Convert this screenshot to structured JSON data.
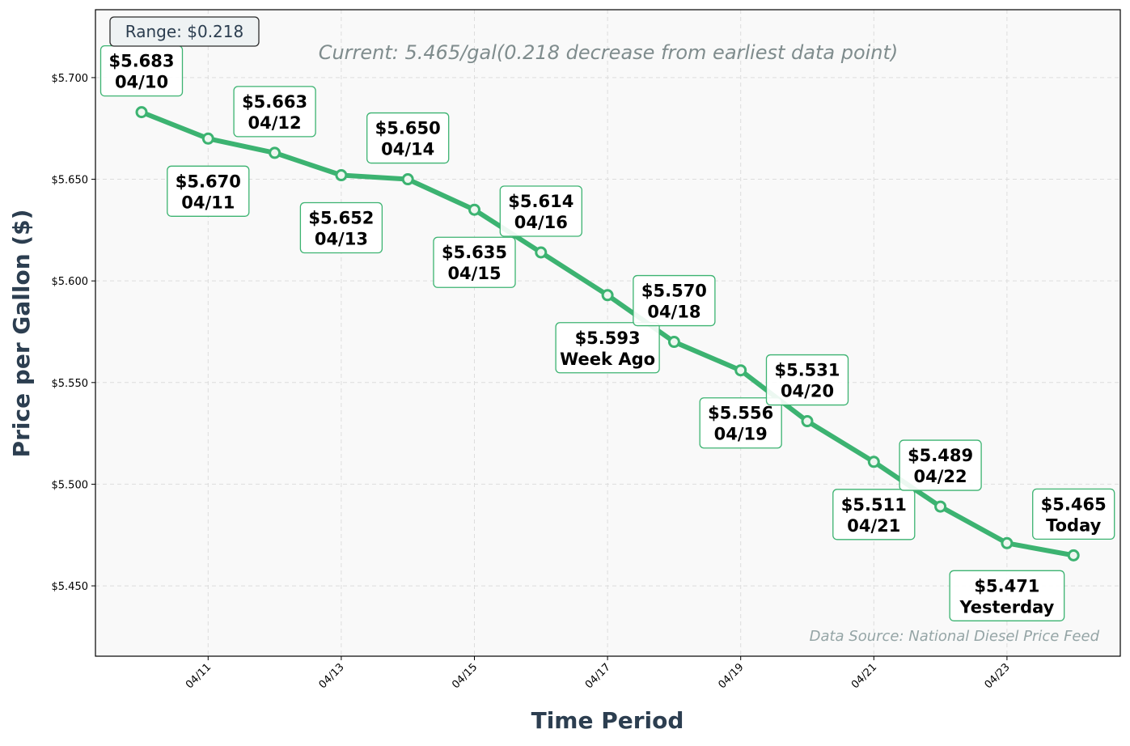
{
  "chart_data": {
    "type": "line",
    "title": "",
    "xlabel": "Time Period",
    "ylabel": "Price per Gallon ($)",
    "x": [
      "04/10",
      "04/11",
      "04/12",
      "04/13",
      "04/14",
      "04/15",
      "04/16",
      "04/17",
      "04/18",
      "04/19",
      "04/20",
      "04/21",
      "04/22",
      "04/23",
      "04/24"
    ],
    "values": [
      5.683,
      5.67,
      5.663,
      5.652,
      5.65,
      5.635,
      5.614,
      5.593,
      5.57,
      5.556,
      5.531,
      5.511,
      5.489,
      5.471,
      5.465
    ],
    "point_labels": [
      [
        "$5.683",
        "04/10"
      ],
      [
        "$5.670",
        "04/11"
      ],
      [
        "$5.663",
        "04/12"
      ],
      [
        "$5.652",
        "04/13"
      ],
      [
        "$5.650",
        "04/14"
      ],
      [
        "$5.635",
        "04/15"
      ],
      [
        "$5.614",
        "04/16"
      ],
      [
        "$5.593",
        "Week Ago"
      ],
      [
        "$5.570",
        "04/18"
      ],
      [
        "$5.556",
        "04/19"
      ],
      [
        "$5.531",
        "04/20"
      ],
      [
        "$5.511",
        "04/21"
      ],
      [
        "$5.489",
        "04/22"
      ],
      [
        "$5.471",
        "Yesterday"
      ],
      [
        "$5.465",
        "Today"
      ]
    ],
    "xticks": [
      "04/11",
      "04/13",
      "04/15",
      "04/17",
      "04/19",
      "04/21",
      "04/23"
    ],
    "yticks": [
      5.45,
      5.5,
      5.55,
      5.6,
      5.65,
      5.7
    ],
    "ytick_labels": [
      "$5.450",
      "$5.500",
      "$5.550",
      "$5.600",
      "$5.650",
      "$5.700"
    ],
    "ylim": [
      5.4154,
      5.7334
    ],
    "grid": true,
    "range_badge": "Range: $0.218",
    "annotation": "Current: 5.465/gal(0.218 decrease from earliest data point)",
    "source": "Data Source: National Diesel Price Feed",
    "colors": {
      "line": "#3cb371",
      "text_dark": "#2c3e50",
      "annotation": "#7f8c8d",
      "source": "#95a5a6",
      "plot_bg": "#f9f9f9"
    }
  }
}
